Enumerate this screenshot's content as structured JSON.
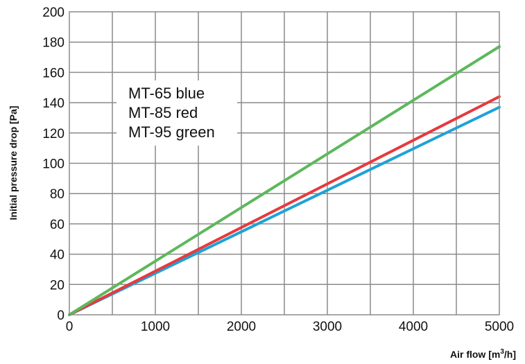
{
  "chart_data": {
    "type": "line",
    "xlabel": "Air flow [m",
    "xlabel_sup": "3",
    "xlabel_end": "/h]",
    "ylabel": "Initial pressure drop [Pa]",
    "xlim": [
      0,
      5000
    ],
    "ylim": [
      0,
      200
    ],
    "x_ticks": [
      "0",
      "1000",
      "2000",
      "3000",
      "4000",
      "5000"
    ],
    "y_ticks": [
      "0",
      "20",
      "40",
      "60",
      "80",
      "100",
      "120",
      "140",
      "160",
      "180",
      "200"
    ],
    "grid": true,
    "annotation": [
      "MT-65 blue",
      "MT-85 red",
      "MT-95 green"
    ],
    "series": [
      {
        "key": "mt65",
        "color": "#1ea2d6",
        "x": [
          0,
          5000
        ],
        "y": [
          0,
          137
        ]
      },
      {
        "key": "mt85",
        "color": "#e63a3f",
        "x": [
          0,
          5000
        ],
        "y": [
          0,
          144
        ]
      },
      {
        "key": "mt95",
        "color": "#5db85c",
        "x": [
          0,
          5000
        ],
        "y": [
          0,
          177
        ]
      }
    ]
  }
}
